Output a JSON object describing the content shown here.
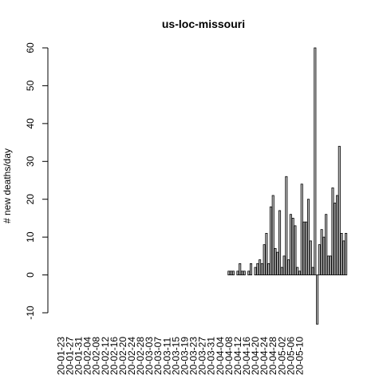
{
  "chart_data": {
    "type": "bar",
    "title": "us-loc-missouri",
    "xlabel": "",
    "ylabel": "# new deaths/day",
    "ylim": [
      -10,
      60
    ],
    "yticks": [
      -10,
      0,
      10,
      20,
      30,
      40,
      50,
      60
    ],
    "grid": false,
    "legend": "none",
    "bar_color": "#bebebe",
    "start_date": "2020-01-23",
    "tick_labels": [
      "20-01-23",
      "20-01-27",
      "20-01-31",
      "20-02-04",
      "20-02-08",
      "20-02-12",
      "20-02-16",
      "20-02-20",
      "20-02-24",
      "20-02-28",
      "20-03-03",
      "20-03-07",
      "20-03-11",
      "20-03-15",
      "20-03-19",
      "20-03-23",
      "20-03-27",
      "20-03-31",
      "20-04-04",
      "20-04-08",
      "20-04-12",
      "20-04-16",
      "20-04-20",
      "20-04-24",
      "20-04-28",
      "20-05-02",
      "20-05-06",
      "20-05-10"
    ],
    "values": [
      0,
      0,
      0,
      0,
      0,
      0,
      0,
      0,
      0,
      0,
      0,
      0,
      0,
      0,
      0,
      0,
      0,
      0,
      0,
      0,
      0,
      0,
      0,
      0,
      0,
      0,
      0,
      0,
      0,
      0,
      0,
      0,
      0,
      0,
      0,
      0,
      0,
      0,
      0,
      0,
      0,
      0,
      0,
      0,
      0,
      0,
      0,
      0,
      0,
      0,
      0,
      0,
      0,
      0,
      0,
      0,
      0,
      0,
      0,
      0,
      0,
      0,
      0,
      0,
      0,
      0,
      0,
      0,
      0,
      0,
      0,
      0,
      0,
      0,
      0,
      0,
      1,
      1,
      1,
      0,
      1,
      3,
      1,
      1,
      0,
      1,
      3,
      0,
      2,
      3,
      4,
      3,
      8,
      11,
      3,
      18,
      21,
      7,
      6,
      17,
      2,
      5,
      26,
      4,
      16,
      15,
      13,
      2,
      1,
      24,
      14,
      14,
      20,
      9,
      2,
      60,
      -13,
      8,
      12,
      10,
      16,
      5,
      5,
      23,
      19,
      21,
      34,
      11,
      9,
      11
    ]
  }
}
